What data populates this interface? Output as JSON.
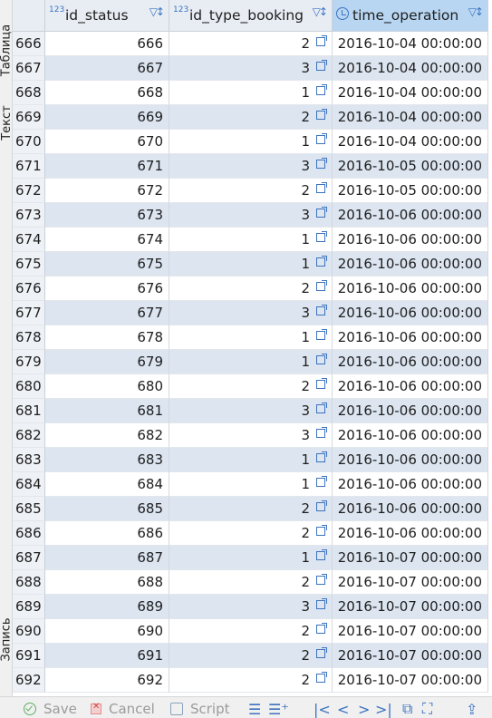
{
  "side_tabs": {
    "table": "Таблица",
    "text": "Текст",
    "record": "Запись"
  },
  "columns": [
    {
      "type_badge": "123",
      "name": "id_status"
    },
    {
      "type_badge": "123",
      "name": "id_type_booking"
    },
    {
      "type_badge": "",
      "name": "time_operation"
    }
  ],
  "rows": [
    {
      "rn": "666",
      "id_status": "666",
      "id_type_booking": "2",
      "time_operation": "2016-10-04 00:00:00"
    },
    {
      "rn": "667",
      "id_status": "667",
      "id_type_booking": "3",
      "time_operation": "2016-10-04 00:00:00"
    },
    {
      "rn": "668",
      "id_status": "668",
      "id_type_booking": "1",
      "time_operation": "2016-10-04 00:00:00"
    },
    {
      "rn": "669",
      "id_status": "669",
      "id_type_booking": "2",
      "time_operation": "2016-10-04 00:00:00"
    },
    {
      "rn": "670",
      "id_status": "670",
      "id_type_booking": "1",
      "time_operation": "2016-10-04 00:00:00"
    },
    {
      "rn": "671",
      "id_status": "671",
      "id_type_booking": "3",
      "time_operation": "2016-10-05 00:00:00"
    },
    {
      "rn": "672",
      "id_status": "672",
      "id_type_booking": "2",
      "time_operation": "2016-10-05 00:00:00"
    },
    {
      "rn": "673",
      "id_status": "673",
      "id_type_booking": "3",
      "time_operation": "2016-10-06 00:00:00"
    },
    {
      "rn": "674",
      "id_status": "674",
      "id_type_booking": "1",
      "time_operation": "2016-10-06 00:00:00"
    },
    {
      "rn": "675",
      "id_status": "675",
      "id_type_booking": "1",
      "time_operation": "2016-10-06 00:00:00"
    },
    {
      "rn": "676",
      "id_status": "676",
      "id_type_booking": "2",
      "time_operation": "2016-10-06 00:00:00"
    },
    {
      "rn": "677",
      "id_status": "677",
      "id_type_booking": "3",
      "time_operation": "2016-10-06 00:00:00"
    },
    {
      "rn": "678",
      "id_status": "678",
      "id_type_booking": "1",
      "time_operation": "2016-10-06 00:00:00"
    },
    {
      "rn": "679",
      "id_status": "679",
      "id_type_booking": "1",
      "time_operation": "2016-10-06 00:00:00"
    },
    {
      "rn": "680",
      "id_status": "680",
      "id_type_booking": "2",
      "time_operation": "2016-10-06 00:00:00"
    },
    {
      "rn": "681",
      "id_status": "681",
      "id_type_booking": "3",
      "time_operation": "2016-10-06 00:00:00"
    },
    {
      "rn": "682",
      "id_status": "682",
      "id_type_booking": "3",
      "time_operation": "2016-10-06 00:00:00"
    },
    {
      "rn": "683",
      "id_status": "683",
      "id_type_booking": "1",
      "time_operation": "2016-10-06 00:00:00"
    },
    {
      "rn": "684",
      "id_status": "684",
      "id_type_booking": "1",
      "time_operation": "2016-10-06 00:00:00"
    },
    {
      "rn": "685",
      "id_status": "685",
      "id_type_booking": "2",
      "time_operation": "2016-10-06 00:00:00"
    },
    {
      "rn": "686",
      "id_status": "686",
      "id_type_booking": "2",
      "time_operation": "2016-10-06 00:00:00"
    },
    {
      "rn": "687",
      "id_status": "687",
      "id_type_booking": "1",
      "time_operation": "2016-10-07 00:00:00"
    },
    {
      "rn": "688",
      "id_status": "688",
      "id_type_booking": "2",
      "time_operation": "2016-10-07 00:00:00"
    },
    {
      "rn": "689",
      "id_status": "689",
      "id_type_booking": "3",
      "time_operation": "2016-10-07 00:00:00"
    },
    {
      "rn": "690",
      "id_status": "690",
      "id_type_booking": "2",
      "time_operation": "2016-10-07 00:00:00"
    },
    {
      "rn": "691",
      "id_status": "691",
      "id_type_booking": "2",
      "time_operation": "2016-10-07 00:00:00"
    },
    {
      "rn": "692",
      "id_status": "692",
      "id_type_booking": "2",
      "time_operation": "2016-10-07 00:00:00"
    }
  ],
  "toolbar": {
    "save": "Save",
    "cancel": "Cancel",
    "script": "Script"
  },
  "colors": {
    "header_bg": "#e8edf4",
    "selected_header_bg": "#b8d6f2",
    "stripe": "#dce5f0",
    "accent": "#3b73c0"
  }
}
